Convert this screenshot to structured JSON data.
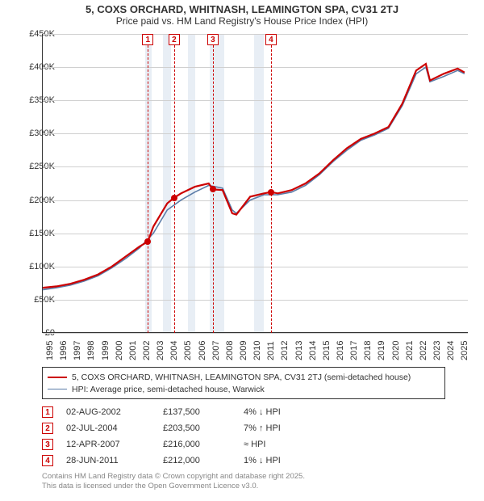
{
  "title": "5, COXS ORCHARD, WHITNASH, LEAMINGTON SPA, CV31 2TJ",
  "subtitle": "Price paid vs. HM Land Registry's House Price Index (HPI)",
  "chart": {
    "type": "line",
    "background_color": "#ffffff",
    "grid_color": "#d0d0d0",
    "shade_color": "#e8eef5",
    "x": {
      "min": 1995,
      "max": 2025.8,
      "ticks": [
        1995,
        1996,
        1997,
        1998,
        1999,
        2000,
        2001,
        2002,
        2003,
        2004,
        2005,
        2006,
        2007,
        2008,
        2009,
        2010,
        2011,
        2012,
        2013,
        2014,
        2015,
        2016,
        2017,
        2018,
        2019,
        2020,
        2021,
        2022,
        2023,
        2024,
        2025
      ]
    },
    "y": {
      "min": 0,
      "max": 450000,
      "tick_step": 50000,
      "prefix": "£",
      "suffix": "K",
      "tick_labels": [
        "£0",
        "£50K",
        "£100K",
        "£150K",
        "£200K",
        "£250K",
        "£300K",
        "£350K",
        "£400K",
        "£450K"
      ]
    },
    "recession_bands": [
      {
        "start": 2002.4,
        "end": 2002.9
      },
      {
        "start": 2003.7,
        "end": 2004.3
      },
      {
        "start": 2005.5,
        "end": 2006.0
      },
      {
        "start": 2007.1,
        "end": 2008.1
      },
      {
        "start": 2010.3,
        "end": 2011.0
      }
    ],
    "series": [
      {
        "id": "property",
        "label": "5, COXS ORCHARD, WHITNASH, LEAMINGTON SPA, CV31 2TJ (semi-detached house)",
        "color": "#cc0000",
        "width": 2.2,
        "x": [
          1995,
          1996,
          1997,
          1998,
          1999,
          2000,
          2001,
          2002,
          2002.6,
          2003,
          2004,
          2004.5,
          2005,
          2006,
          2007,
          2007.3,
          2008,
          2008.7,
          2009,
          2010,
          2011,
          2011.5,
          2012,
          2013,
          2014,
          2015,
          2016,
          2017,
          2018,
          2019,
          2020,
          2021,
          2022,
          2022.7,
          2023,
          2024,
          2025,
          2025.5
        ],
        "y": [
          68000,
          70000,
          74000,
          80000,
          88000,
          100000,
          115000,
          130000,
          137500,
          160000,
          195000,
          203500,
          210000,
          220000,
          225000,
          216000,
          215000,
          180000,
          178000,
          205000,
          210000,
          212000,
          210000,
          215000,
          225000,
          240000,
          260000,
          278000,
          292000,
          300000,
          310000,
          345000,
          395000,
          405000,
          380000,
          390000,
          398000,
          392000
        ]
      },
      {
        "id": "hpi",
        "label": "HPI: Average price, semi-detached house, Warwick",
        "color": "#5b7ca8",
        "width": 1.6,
        "x": [
          1995,
          1996,
          1997,
          1998,
          1999,
          2000,
          2001,
          2002,
          2003,
          2004,
          2005,
          2006,
          2007,
          2008,
          2008.7,
          2009,
          2010,
          2011,
          2012,
          2013,
          2014,
          2015,
          2016,
          2017,
          2018,
          2019,
          2020,
          2021,
          2022,
          2022.7,
          2023,
          2024,
          2025,
          2025.5
        ],
        "y": [
          65000,
          68000,
          72000,
          78000,
          86000,
          98000,
          112000,
          128000,
          150000,
          185000,
          200000,
          212000,
          222000,
          218000,
          185000,
          180000,
          200000,
          208000,
          208000,
          212000,
          222000,
          238000,
          258000,
          275000,
          290000,
          298000,
          308000,
          342000,
          390000,
          400000,
          378000,
          386000,
          395000,
          390000
        ]
      }
    ],
    "markers": [
      {
        "n": "1",
        "year": 2002.6,
        "value": 137500
      },
      {
        "n": "2",
        "year": 2004.5,
        "value": 203500
      },
      {
        "n": "3",
        "year": 2007.3,
        "value": 216000
      },
      {
        "n": "4",
        "year": 2011.5,
        "value": 212000
      }
    ]
  },
  "legend": {
    "items": [
      {
        "color": "#cc0000",
        "width": 2.2,
        "label": "5, COXS ORCHARD, WHITNASH, LEAMINGTON SPA, CV31 2TJ (semi-detached house)"
      },
      {
        "color": "#5b7ca8",
        "width": 1.6,
        "label": "HPI: Average price, semi-detached house, Warwick"
      }
    ]
  },
  "transactions": [
    {
      "n": "1",
      "date": "02-AUG-2002",
      "price": "£137,500",
      "delta": "4% ↓ HPI"
    },
    {
      "n": "2",
      "date": "02-JUL-2004",
      "price": "£203,500",
      "delta": "7% ↑ HPI"
    },
    {
      "n": "3",
      "date": "12-APR-2007",
      "price": "£216,000",
      "delta": "≈ HPI"
    },
    {
      "n": "4",
      "date": "28-JUN-2011",
      "price": "£212,000",
      "delta": "1% ↓ HPI"
    }
  ],
  "footer_line1": "Contains HM Land Registry data © Crown copyright and database right 2025.",
  "footer_line2": "This data is licensed under the Open Government Licence v3.0."
}
